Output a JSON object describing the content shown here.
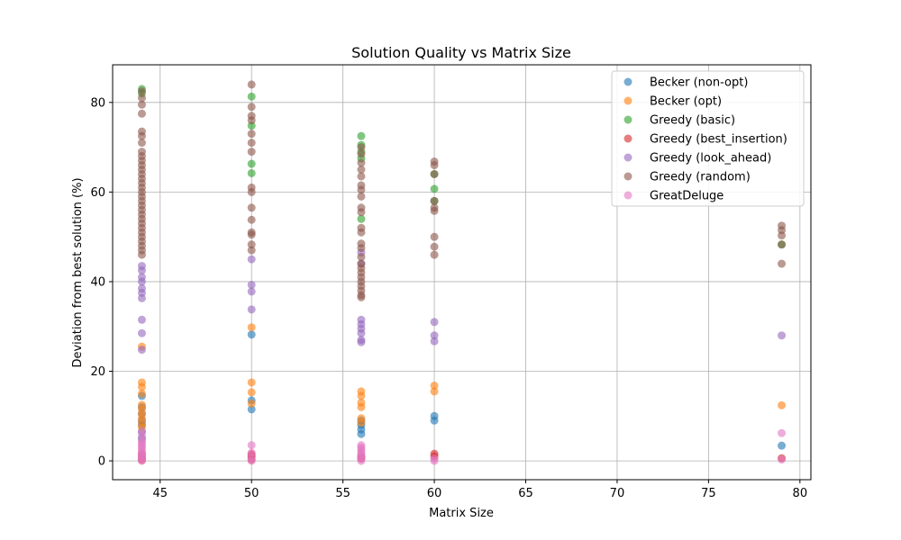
{
  "chart_data": {
    "type": "scatter",
    "title": "Solution Quality vs Matrix Size",
    "xlabel": "Matrix Size",
    "ylabel": "Deviation from best solution (%)",
    "xlim": [
      42.4,
      80.6
    ],
    "ylim": [
      -4.2,
      88.4
    ],
    "xticks": [
      45,
      50,
      55,
      60,
      65,
      70,
      75,
      80
    ],
    "yticks": [
      0,
      20,
      40,
      60,
      80
    ],
    "grid": true,
    "legend_position": "top-right",
    "series": [
      {
        "name": "Becker (non-opt)",
        "color": "#1f77b4",
        "points": [
          [
            44,
            14.5
          ],
          [
            44,
            12.0
          ],
          [
            44,
            10.5
          ],
          [
            44,
            9.0
          ],
          [
            44,
            8.0
          ],
          [
            44,
            6.5
          ],
          [
            44,
            5.0
          ],
          [
            50,
            28.2
          ],
          [
            50,
            13.5
          ],
          [
            50,
            11.5
          ],
          [
            56,
            9.0
          ],
          [
            56,
            8.0
          ],
          [
            56,
            7.0
          ],
          [
            56,
            6.0
          ],
          [
            60,
            10.0
          ],
          [
            60,
            9.0
          ],
          [
            79,
            3.4
          ]
        ]
      },
      {
        "name": "Becker (opt)",
        "color": "#ff7f0e",
        "points": [
          [
            44,
            25.5
          ],
          [
            44,
            17.5
          ],
          [
            44,
            16.5
          ],
          [
            44,
            15.0
          ],
          [
            44,
            12.5
          ],
          [
            44,
            11.5
          ],
          [
            44,
            10.5
          ],
          [
            44,
            9.5
          ],
          [
            44,
            8.5
          ],
          [
            44,
            7.5
          ],
          [
            50,
            29.8
          ],
          [
            50,
            17.5
          ],
          [
            50,
            15.3
          ],
          [
            50,
            12.8
          ],
          [
            56,
            15.5
          ],
          [
            56,
            14.5
          ],
          [
            56,
            13.0
          ],
          [
            56,
            12.0
          ],
          [
            56,
            9.5
          ],
          [
            56,
            8.5
          ],
          [
            60,
            16.8
          ],
          [
            60,
            15.5
          ],
          [
            79,
            12.4
          ]
        ]
      },
      {
        "name": "Greedy (basic)",
        "color": "#2ca02c",
        "points": [
          [
            44,
            83.0
          ],
          [
            44,
            82.0
          ],
          [
            50,
            81.3
          ],
          [
            50,
            74.8
          ],
          [
            50,
            66.3
          ],
          [
            50,
            64.2
          ],
          [
            56,
            72.5
          ],
          [
            56,
            70.5
          ],
          [
            56,
            69.0
          ],
          [
            56,
            67.5
          ],
          [
            56,
            54.0
          ],
          [
            60,
            64.0
          ],
          [
            60,
            60.7
          ],
          [
            60,
            58.0
          ],
          [
            79,
            48.3
          ]
        ]
      },
      {
        "name": "Greedy (best_insertion)",
        "color": "#d62728",
        "points": [
          [
            44,
            1.5
          ],
          [
            44,
            0.8
          ],
          [
            44,
            0.2
          ],
          [
            50,
            1.5
          ],
          [
            50,
            1.0
          ],
          [
            50,
            0.3
          ],
          [
            56,
            1.0
          ],
          [
            56,
            0.5
          ],
          [
            60,
            1.6
          ],
          [
            60,
            1.0
          ],
          [
            79,
            0.6
          ]
        ]
      },
      {
        "name": "Greedy (look_ahead)",
        "color": "#9467bd",
        "points": [
          [
            44,
            43.5
          ],
          [
            44,
            42.5
          ],
          [
            44,
            41.0
          ],
          [
            44,
            40.0
          ],
          [
            44,
            38.5
          ],
          [
            44,
            37.5
          ],
          [
            44,
            36.3
          ],
          [
            44,
            31.5
          ],
          [
            44,
            28.5
          ],
          [
            44,
            24.8
          ],
          [
            50,
            45.0
          ],
          [
            50,
            39.3
          ],
          [
            50,
            37.8
          ],
          [
            50,
            33.8
          ],
          [
            56,
            46.5
          ],
          [
            56,
            44.0
          ],
          [
            56,
            31.5
          ],
          [
            56,
            30.5
          ],
          [
            56,
            29.5
          ],
          [
            56,
            28.5
          ],
          [
            56,
            27.0
          ],
          [
            56,
            26.5
          ],
          [
            60,
            31.0
          ],
          [
            60,
            28.0
          ],
          [
            60,
            26.7
          ],
          [
            79,
            28.0
          ]
        ]
      },
      {
        "name": "Greedy (random)",
        "color": "#8c564b",
        "points": [
          [
            44,
            82.5
          ],
          [
            44,
            81.0
          ],
          [
            44,
            79.5
          ],
          [
            44,
            77.5
          ],
          [
            44,
            73.5
          ],
          [
            44,
            72.5
          ],
          [
            44,
            71.0
          ],
          [
            44,
            69.0
          ],
          [
            44,
            68.0
          ],
          [
            44,
            67.0
          ],
          [
            44,
            66.0
          ],
          [
            44,
            65.0
          ],
          [
            44,
            64.0
          ],
          [
            44,
            63.0
          ],
          [
            44,
            62.0
          ],
          [
            44,
            61.0
          ],
          [
            44,
            60.0
          ],
          [
            44,
            59.0
          ],
          [
            44,
            58.0
          ],
          [
            44,
            57.0
          ],
          [
            44,
            56.0
          ],
          [
            44,
            55.0
          ],
          [
            44,
            54.0
          ],
          [
            44,
            53.0
          ],
          [
            44,
            52.0
          ],
          [
            44,
            51.0
          ],
          [
            44,
            50.0
          ],
          [
            44,
            49.0
          ],
          [
            44,
            48.0
          ],
          [
            44,
            47.0
          ],
          [
            44,
            46.0
          ],
          [
            50,
            84.0
          ],
          [
            50,
            79.0
          ],
          [
            50,
            77.0
          ],
          [
            50,
            76.0
          ],
          [
            50,
            73.0
          ],
          [
            50,
            71.0
          ],
          [
            50,
            69.0
          ],
          [
            50,
            61.0
          ],
          [
            50,
            60.0
          ],
          [
            50,
            56.5
          ],
          [
            50,
            53.8
          ],
          [
            50,
            51.0
          ],
          [
            50,
            50.5
          ],
          [
            50,
            48.3
          ],
          [
            50,
            47.0
          ],
          [
            56,
            70.0
          ],
          [
            56,
            68.5
          ],
          [
            56,
            66.5
          ],
          [
            56,
            65.0
          ],
          [
            56,
            63.5
          ],
          [
            56,
            61.5
          ],
          [
            56,
            60.5
          ],
          [
            56,
            59.0
          ],
          [
            56,
            56.5
          ],
          [
            56,
            55.5
          ],
          [
            56,
            52.0
          ],
          [
            56,
            51.0
          ],
          [
            56,
            48.5
          ],
          [
            56,
            47.5
          ],
          [
            56,
            45.5
          ],
          [
            56,
            44.0
          ],
          [
            56,
            43.0
          ],
          [
            56,
            42.0
          ],
          [
            56,
            41.0
          ],
          [
            56,
            40.0
          ],
          [
            56,
            39.0
          ],
          [
            56,
            38.0
          ],
          [
            56,
            37.0
          ],
          [
            56,
            36.5
          ],
          [
            60,
            66.8
          ],
          [
            60,
            66.0
          ],
          [
            60,
            64.0
          ],
          [
            60,
            58.0
          ],
          [
            60,
            56.5
          ],
          [
            60,
            55.8
          ],
          [
            60,
            50.0
          ],
          [
            60,
            47.8
          ],
          [
            60,
            46.0
          ],
          [
            79,
            52.5
          ],
          [
            79,
            51.5
          ],
          [
            79,
            50.3
          ],
          [
            79,
            48.3
          ],
          [
            79,
            44.0
          ]
        ]
      },
      {
        "name": "GreatDeluge",
        "color": "#e377c2",
        "points": [
          [
            44,
            6.5
          ],
          [
            44,
            5.5
          ],
          [
            44,
            4.5
          ],
          [
            44,
            4.0
          ],
          [
            44,
            3.5
          ],
          [
            44,
            3.0
          ],
          [
            44,
            2.5
          ],
          [
            44,
            2.0
          ],
          [
            44,
            1.5
          ],
          [
            44,
            1.0
          ],
          [
            44,
            0.5
          ],
          [
            44,
            0.0
          ],
          [
            50,
            3.5
          ],
          [
            50,
            1.8
          ],
          [
            50,
            0.8
          ],
          [
            50,
            0.0
          ],
          [
            56,
            3.5
          ],
          [
            56,
            3.0
          ],
          [
            56,
            2.5
          ],
          [
            56,
            2.0
          ],
          [
            56,
            1.5
          ],
          [
            56,
            1.0
          ],
          [
            56,
            0.5
          ],
          [
            56,
            0.0
          ],
          [
            60,
            0.5
          ],
          [
            60,
            0.0
          ],
          [
            79,
            6.2
          ],
          [
            79,
            0.3
          ]
        ]
      }
    ]
  }
}
